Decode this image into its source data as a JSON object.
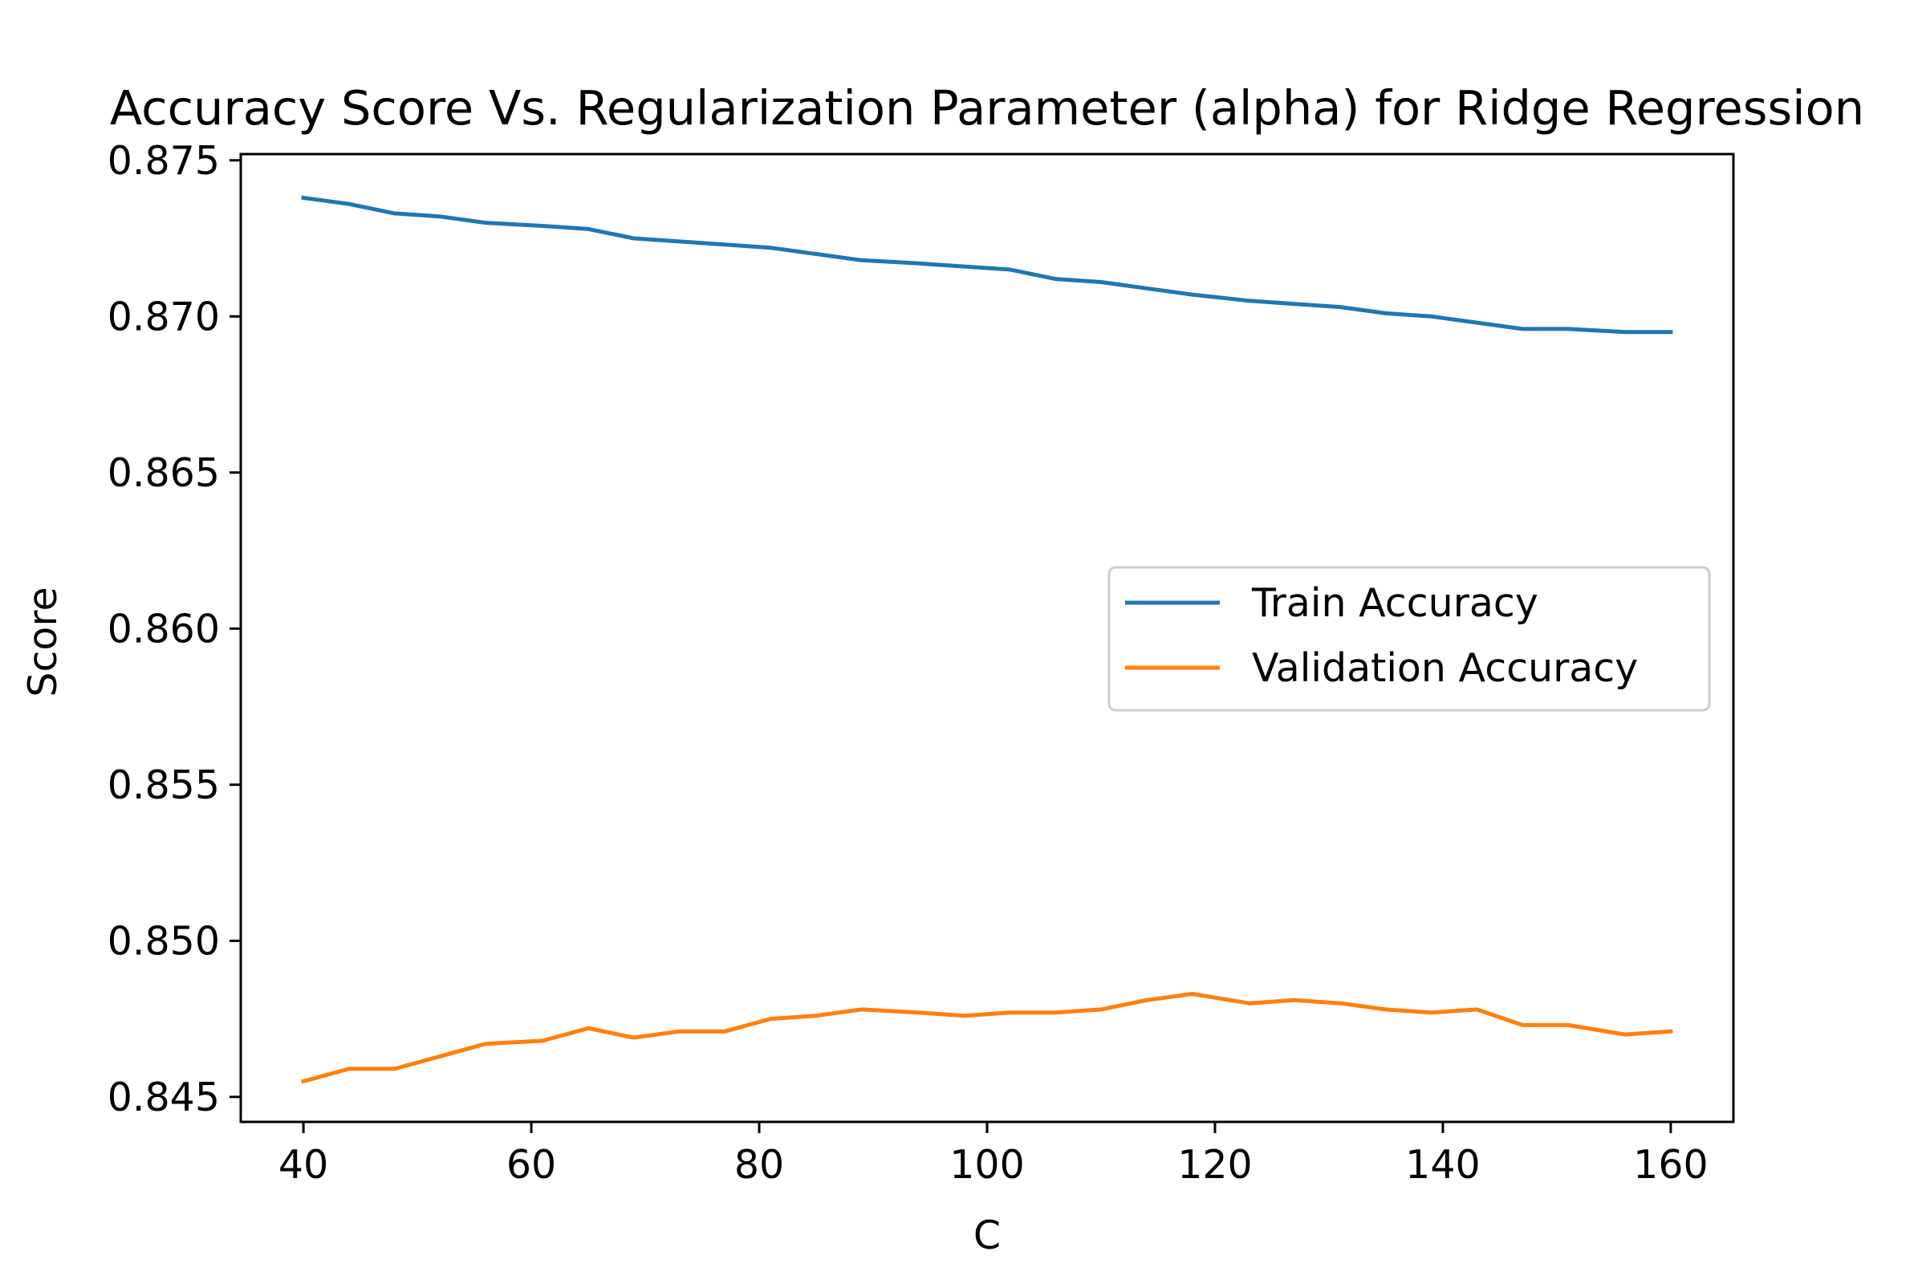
{
  "chart_data": {
    "type": "line",
    "title": "Accuracy Score Vs. Regularization Parameter (alpha) for Ridge Regression",
    "xlabel": "C",
    "ylabel": "Score",
    "xlim": [
      34.5,
      165.5
    ],
    "ylim": [
      0.8442,
      0.8752
    ],
    "xticks": [
      40,
      60,
      80,
      100,
      120,
      140,
      160
    ],
    "xtick_labels": [
      "40",
      "60",
      "80",
      "100",
      "120",
      "140",
      "160"
    ],
    "yticks": [
      0.845,
      0.85,
      0.855,
      0.86,
      0.865,
      0.87,
      0.875
    ],
    "ytick_labels": [
      "0.845",
      "0.850",
      "0.855",
      "0.860",
      "0.865",
      "0.870",
      "0.875"
    ],
    "grid": false,
    "legend_position": "center-right",
    "x": [
      40,
      44,
      48,
      52,
      56,
      61,
      65,
      69,
      73,
      77,
      81,
      85,
      89,
      94,
      98,
      102,
      106,
      110,
      114,
      118,
      123,
      127,
      131,
      135,
      139,
      143,
      147,
      151,
      156,
      160
    ],
    "series": [
      {
        "name": "Train Accuracy",
        "color": "#1f77b4",
        "values": [
          0.8738,
          0.8736,
          0.8733,
          0.8732,
          0.873,
          0.8729,
          0.8728,
          0.8725,
          0.8724,
          0.8723,
          0.8722,
          0.872,
          0.8718,
          0.8717,
          0.8716,
          0.8715,
          0.8712,
          0.8711,
          0.8709,
          0.8707,
          0.8705,
          0.8704,
          0.8703,
          0.8701,
          0.87,
          0.8698,
          0.8696,
          0.8696,
          0.8695,
          0.8695
        ]
      },
      {
        "name": "Validation Accuracy",
        "color": "#ff7f0e",
        "values": [
          0.8455,
          0.8459,
          0.8459,
          0.8463,
          0.8467,
          0.8468,
          0.8472,
          0.8469,
          0.8471,
          0.8471,
          0.8475,
          0.8476,
          0.8478,
          0.8477,
          0.8476,
          0.8477,
          0.8477,
          0.8478,
          0.8481,
          0.8483,
          0.848,
          0.8481,
          0.848,
          0.8478,
          0.8477,
          0.8478,
          0.8473,
          0.8473,
          0.847,
          0.8471
        ]
      }
    ]
  }
}
